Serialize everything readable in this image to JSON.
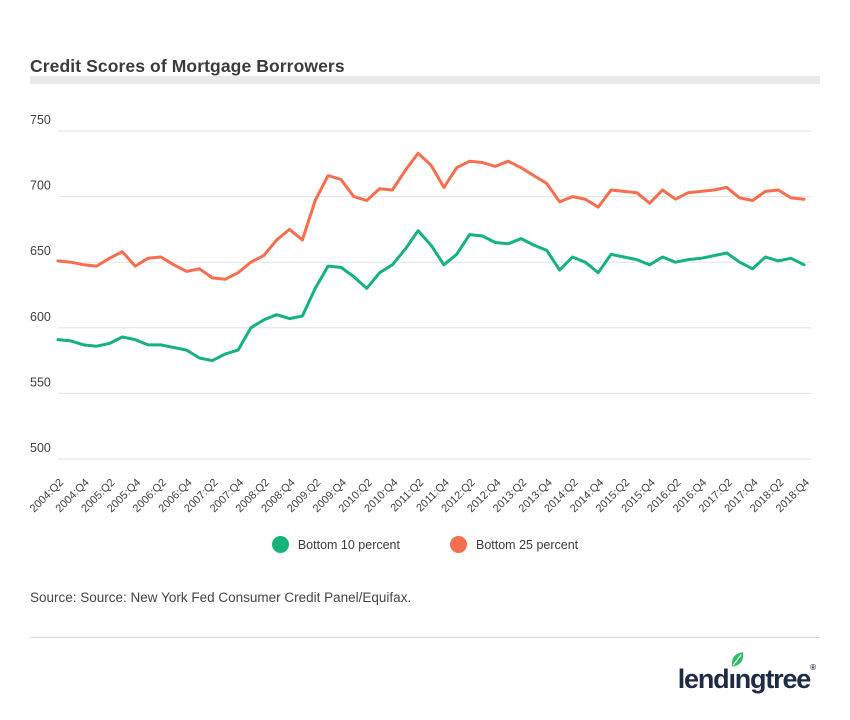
{
  "page": {
    "title": "Credit Scores of Mortgage Borrowers",
    "source_text": "Source: Source: New York Fed Consumer Credit Panel/Equifax.",
    "logo": {
      "pre": "lend",
      "i": "ı",
      "post": "ngtree",
      "reg": "®"
    }
  },
  "colors": {
    "bottom10": "#14b478",
    "bottom25": "#f66e4d",
    "grid": "#e3e3e3",
    "axis_text": "#3f3f3f",
    "title_bar": "#e9e9e9",
    "logo_navy": "#1d2b45",
    "logo_leaf": "#2dc062"
  },
  "chart_data": {
    "type": "line",
    "title": "Credit Scores of Mortgage Borrowers",
    "xlabel": "",
    "ylabel": "",
    "ylim": [
      500,
      750
    ],
    "y_ticks": [
      750,
      700,
      650,
      600,
      550,
      500
    ],
    "grid": true,
    "legend_position": "bottom",
    "x": [
      "2004:Q2",
      "2004:Q3",
      "2004:Q4",
      "2005:Q1",
      "2005:Q2",
      "2005:Q3",
      "2005:Q4",
      "2006:Q1",
      "2006:Q2",
      "2006:Q3",
      "2006:Q4",
      "2007:Q1",
      "2007:Q2",
      "2007:Q3",
      "2007:Q4",
      "2008:Q1",
      "2008:Q2",
      "2008:Q3",
      "2008:Q4",
      "2009:Q1",
      "2009:Q2",
      "2009:Q3",
      "2009:Q4",
      "2010:Q1",
      "2010:Q2",
      "2010:Q3",
      "2010:Q4",
      "2011:Q1",
      "2011:Q2",
      "2011:Q3",
      "2011:Q4",
      "2012:Q1",
      "2012:Q2",
      "2012:Q3",
      "2012:Q4",
      "2013:Q1",
      "2013:Q2",
      "2013:Q3",
      "2013:Q4",
      "2014:Q1",
      "2014:Q2",
      "2014:Q3",
      "2014:Q4",
      "2015:Q1",
      "2015:Q2",
      "2015:Q3",
      "2015:Q4",
      "2016:Q1",
      "2016:Q2",
      "2016:Q3",
      "2016:Q4",
      "2017:Q1",
      "2017:Q2",
      "2017:Q3",
      "2017:Q4",
      "2018:Q1",
      "2018:Q2",
      "2018:Q3",
      "2018:Q4"
    ],
    "x_tick_labels": [
      "2004:Q2",
      "2004:Q4",
      "2005:Q2",
      "2005:Q4",
      "2006:Q2",
      "2006:Q4",
      "2007:Q2",
      "2007:Q4",
      "2008:Q2",
      "2008:Q4",
      "2009:Q2",
      "2009:Q4",
      "2010:Q2",
      "2010:Q4",
      "2011:Q2",
      "2011:Q4",
      "2012:Q2",
      "2012:Q4",
      "2013:Q2",
      "2013:Q4",
      "2014:Q2",
      "2014:Q4",
      "2015:Q2",
      "2015:Q4",
      "2016:Q2",
      "2016:Q4",
      "2017:Q2",
      "2017:Q4",
      "2018:Q2",
      "2018:Q4"
    ],
    "x_tick_every": 2,
    "series": [
      {
        "name": "Bottom 10 percent",
        "color": "#14b478",
        "values": [
          591,
          590,
          587,
          586,
          588,
          593,
          591,
          587,
          587,
          585,
          583,
          577,
          575,
          580,
          583,
          600,
          606,
          610,
          607,
          609,
          630,
          647,
          646,
          639,
          630,
          642,
          648,
          660,
          674,
          663,
          648,
          656,
          671,
          670,
          665,
          664,
          668,
          663,
          659,
          644,
          654,
          650,
          642,
          656,
          654,
          652,
          648,
          654,
          650,
          652,
          653,
          655,
          657,
          650,
          645,
          654,
          651,
          653,
          648
        ]
      },
      {
        "name": "Bottom 25 percent",
        "color": "#f66e4d",
        "values": [
          651,
          650,
          648,
          647,
          653,
          658,
          647,
          653,
          654,
          648,
          643,
          645,
          638,
          637,
          642,
          650,
          655,
          667,
          675,
          667,
          697,
          716,
          713,
          700,
          697,
          706,
          705,
          720,
          733,
          724,
          707,
          722,
          727,
          726,
          723,
          727,
          722,
          716,
          710,
          696,
          700,
          698,
          692,
          705,
          704,
          703,
          695,
          705,
          698,
          703,
          704,
          705,
          707,
          699,
          697,
          704,
          705,
          699,
          698
        ]
      }
    ]
  }
}
